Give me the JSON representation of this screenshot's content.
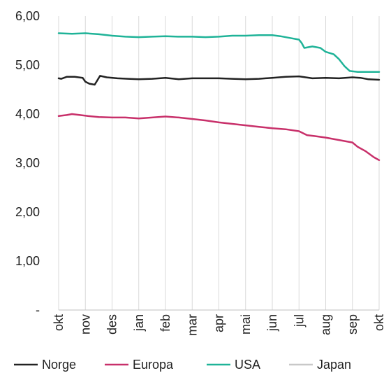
{
  "chart_data": {
    "type": "line",
    "title": "",
    "xlabel": "",
    "ylabel": "",
    "x_ticks": [
      "okt",
      "nov",
      "des",
      "jan",
      "feb",
      "mar",
      "apr",
      "mai",
      "jun",
      "jul",
      "aug",
      "sep",
      "okt"
    ],
    "y_ticks": [
      {
        "value": 0,
        "label": "-"
      },
      {
        "value": 1,
        "label": "1,00"
      },
      {
        "value": 2,
        "label": "2,00"
      },
      {
        "value": 3,
        "label": "3,00"
      },
      {
        "value": 4,
        "label": "4,00"
      },
      {
        "value": 5,
        "label": "5,00"
      },
      {
        "value": 6,
        "label": "6,00"
      }
    ],
    "ylim": [
      0,
      6
    ],
    "grid": {
      "vertical": true,
      "horizontal": false
    },
    "legend_position": "bottom",
    "series": [
      {
        "name": "Norge",
        "color": "#222222",
        "points": [
          [
            0.0,
            4.73
          ],
          [
            0.1,
            4.72
          ],
          [
            0.3,
            4.76
          ],
          [
            0.6,
            4.76
          ],
          [
            0.9,
            4.74
          ],
          [
            1.0,
            4.66
          ],
          [
            1.15,
            4.62
          ],
          [
            1.35,
            4.6
          ],
          [
            1.55,
            4.78
          ],
          [
            1.8,
            4.75
          ],
          [
            2.2,
            4.73
          ],
          [
            2.6,
            4.72
          ],
          [
            3.0,
            4.71
          ],
          [
            3.5,
            4.72
          ],
          [
            4.0,
            4.74
          ],
          [
            4.5,
            4.71
          ],
          [
            5.0,
            4.73
          ],
          [
            5.5,
            4.73
          ],
          [
            6.0,
            4.73
          ],
          [
            6.5,
            4.72
          ],
          [
            7.0,
            4.71
          ],
          [
            7.5,
            4.72
          ],
          [
            8.0,
            4.74
          ],
          [
            8.5,
            4.76
          ],
          [
            9.0,
            4.77
          ],
          [
            9.5,
            4.73
          ],
          [
            10.0,
            4.74
          ],
          [
            10.5,
            4.73
          ],
          [
            11.0,
            4.75
          ],
          [
            11.3,
            4.74
          ],
          [
            11.6,
            4.71
          ],
          [
            12.0,
            4.7
          ]
        ]
      },
      {
        "name": "Europa",
        "color": "#c8306a",
        "points": [
          [
            0.0,
            3.96
          ],
          [
            0.3,
            3.98
          ],
          [
            0.5,
            4.0
          ],
          [
            0.8,
            3.98
          ],
          [
            1.1,
            3.96
          ],
          [
            1.5,
            3.94
          ],
          [
            2.0,
            3.93
          ],
          [
            2.5,
            3.93
          ],
          [
            3.0,
            3.91
          ],
          [
            3.5,
            3.93
          ],
          [
            4.0,
            3.95
          ],
          [
            4.5,
            3.93
          ],
          [
            5.0,
            3.9
          ],
          [
            5.5,
            3.87
          ],
          [
            6.0,
            3.83
          ],
          [
            6.5,
            3.8
          ],
          [
            7.0,
            3.77
          ],
          [
            7.5,
            3.74
          ],
          [
            8.0,
            3.71
          ],
          [
            8.5,
            3.69
          ],
          [
            9.0,
            3.65
          ],
          [
            9.3,
            3.57
          ],
          [
            9.6,
            3.55
          ],
          [
            10.0,
            3.52
          ],
          [
            10.5,
            3.47
          ],
          [
            11.0,
            3.42
          ],
          [
            11.2,
            3.33
          ],
          [
            11.5,
            3.24
          ],
          [
            11.8,
            3.12
          ],
          [
            12.0,
            3.06
          ]
        ]
      },
      {
        "name": "USA",
        "color": "#1fb398",
        "points": [
          [
            0.0,
            5.65
          ],
          [
            0.5,
            5.64
          ],
          [
            1.0,
            5.65
          ],
          [
            1.5,
            5.63
          ],
          [
            2.0,
            5.6
          ],
          [
            2.5,
            5.58
          ],
          [
            3.0,
            5.57
          ],
          [
            3.5,
            5.58
          ],
          [
            4.0,
            5.59
          ],
          [
            4.5,
            5.58
          ],
          [
            5.0,
            5.58
          ],
          [
            5.5,
            5.57
          ],
          [
            6.0,
            5.58
          ],
          [
            6.5,
            5.6
          ],
          [
            7.0,
            5.6
          ],
          [
            7.5,
            5.61
          ],
          [
            8.0,
            5.61
          ],
          [
            8.3,
            5.59
          ],
          [
            8.6,
            5.56
          ],
          [
            9.0,
            5.52
          ],
          [
            9.1,
            5.45
          ],
          [
            9.2,
            5.35
          ],
          [
            9.5,
            5.38
          ],
          [
            9.8,
            5.35
          ],
          [
            10.0,
            5.27
          ],
          [
            10.3,
            5.22
          ],
          [
            10.5,
            5.12
          ],
          [
            10.7,
            4.98
          ],
          [
            10.9,
            4.88
          ],
          [
            11.2,
            4.86
          ],
          [
            11.6,
            4.86
          ],
          [
            12.0,
            4.86
          ]
        ]
      },
      {
        "name": "Japan",
        "color": "#c8c8c8",
        "points": []
      }
    ]
  }
}
